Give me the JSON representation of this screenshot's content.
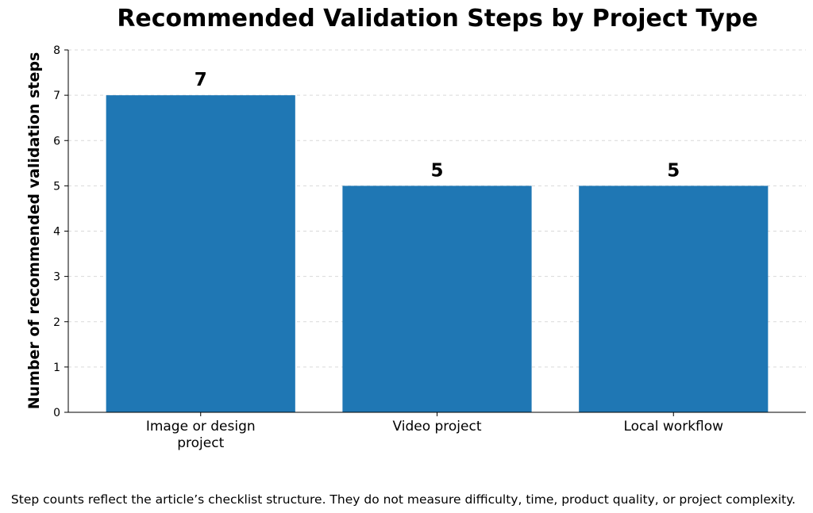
{
  "chart_data": {
    "type": "bar",
    "title": "Recommended Validation Steps by Project Type",
    "xlabel": "",
    "ylabel": "Number of recommended validation steps",
    "categories": [
      "Image or design project",
      "Video project",
      "Local workflow"
    ],
    "category_lines": [
      [
        "Image or design",
        "project"
      ],
      [
        "Video project"
      ],
      [
        "Local workflow"
      ]
    ],
    "values": [
      7,
      5,
      5
    ],
    "value_labels": [
      "7",
      "5",
      "5"
    ],
    "ylim": [
      0,
      8
    ],
    "yticks": [
      "0",
      "1",
      "2",
      "3",
      "4",
      "5",
      "6",
      "7",
      "8"
    ],
    "grid": true,
    "bar_color": "#1f77b4"
  },
  "footnote": "Step counts reflect the article’s checklist structure. They do not measure difficulty, time, product quality, or project complexity."
}
